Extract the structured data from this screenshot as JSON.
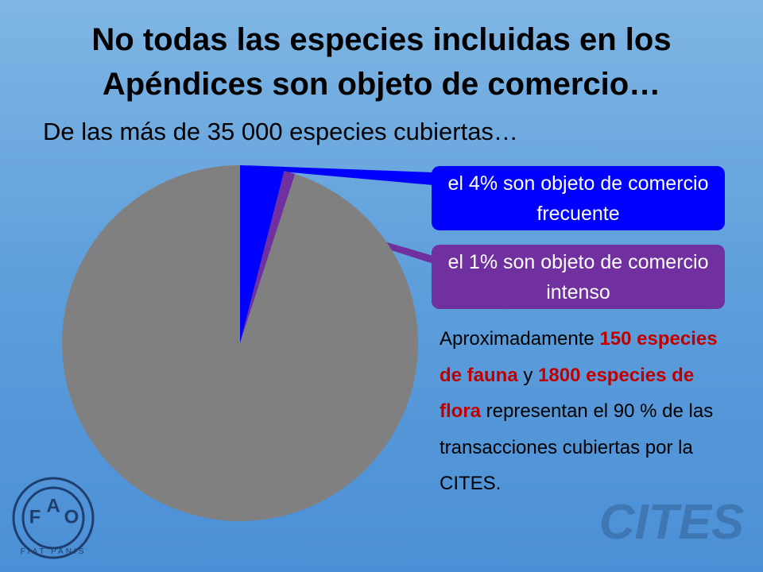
{
  "chart_data": {
    "type": "pie",
    "title": "No todas las especies incluidas en los Apéndices son objeto de comercio…",
    "subtitle": "De las más de 35 000 especies cubiertas…",
    "categories": [
      "el 4% son objeto de comercio frecuente",
      "el 1% son objeto de comercio intenso",
      null
    ],
    "values": [
      4,
      1,
      95
    ],
    "colors": [
      "#0000ff",
      "#7030a0",
      "#808080"
    ],
    "annotation": [
      {
        "text": "Aproximadamente ",
        "color": "#000000"
      },
      {
        "text": "150 especies de fauna",
        "color": "#c00000"
      },
      {
        "text": " y ",
        "color": "#000000"
      },
      {
        "text": "1800 especies de flora",
        "color": "#c00000"
      },
      {
        "text": " representan el 90 % de las transacciones cubiertas por la CITES.",
        "color": "#000000"
      }
    ]
  },
  "logos": {
    "fao_letters": [
      "F",
      "A",
      "O"
    ],
    "fao_motto": "FIAT PANIS",
    "cites": "CITES"
  }
}
